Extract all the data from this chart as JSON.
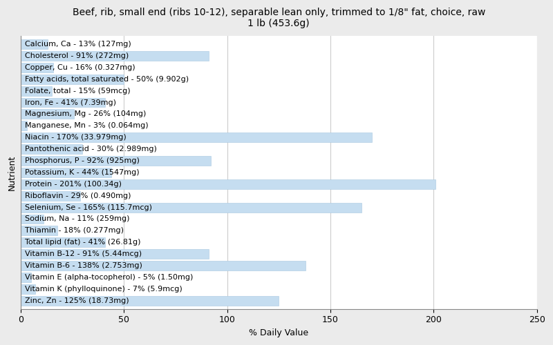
{
  "title": "Beef, rib, small end (ribs 10-12), separable lean only, trimmed to 1/8\" fat, choice, raw\n1 lb (453.6g)",
  "xlabel": "% Daily Value",
  "ylabel": "Nutrient",
  "nutrients": [
    "Calcium, Ca - 13% (127mg)",
    "Cholesterol - 91% (272mg)",
    "Copper, Cu - 16% (0.327mg)",
    "Fatty acids, total saturated - 50% (9.902g)",
    "Folate, total - 15% (59mcg)",
    "Iron, Fe - 41% (7.39mg)",
    "Magnesium, Mg - 26% (104mg)",
    "Manganese, Mn - 3% (0.064mg)",
    "Niacin - 170% (33.979mg)",
    "Pantothenic acid - 30% (2.989mg)",
    "Phosphorus, P - 92% (925mg)",
    "Potassium, K - 44% (1547mg)",
    "Protein - 201% (100.34g)",
    "Riboflavin - 29% (0.490mg)",
    "Selenium, Se - 165% (115.7mcg)",
    "Sodium, Na - 11% (259mg)",
    "Thiamin - 18% (0.277mg)",
    "Total lipid (fat) - 41% (26.81g)",
    "Vitamin B-12 - 91% (5.44mcg)",
    "Vitamin B-6 - 138% (2.753mg)",
    "Vitamin E (alpha-tocopherol) - 5% (1.50mg)",
    "Vitamin K (phylloquinone) - 7% (5.9mcg)",
    "Zinc, Zn - 125% (18.73mg)"
  ],
  "values": [
    13,
    91,
    16,
    50,
    15,
    41,
    26,
    3,
    170,
    30,
    92,
    44,
    201,
    29,
    165,
    11,
    18,
    41,
    91,
    138,
    5,
    7,
    125
  ],
  "bar_color": "#c5ddf0",
  "bar_edge_color": "#a8c8e0",
  "background_color": "#ebebeb",
  "plot_background": "#ffffff",
  "xlim": [
    0,
    250
  ],
  "xticks": [
    0,
    50,
    100,
    150,
    200,
    250
  ],
  "title_fontsize": 10,
  "label_fontsize": 8,
  "tick_fontsize": 9,
  "bar_height": 0.82
}
